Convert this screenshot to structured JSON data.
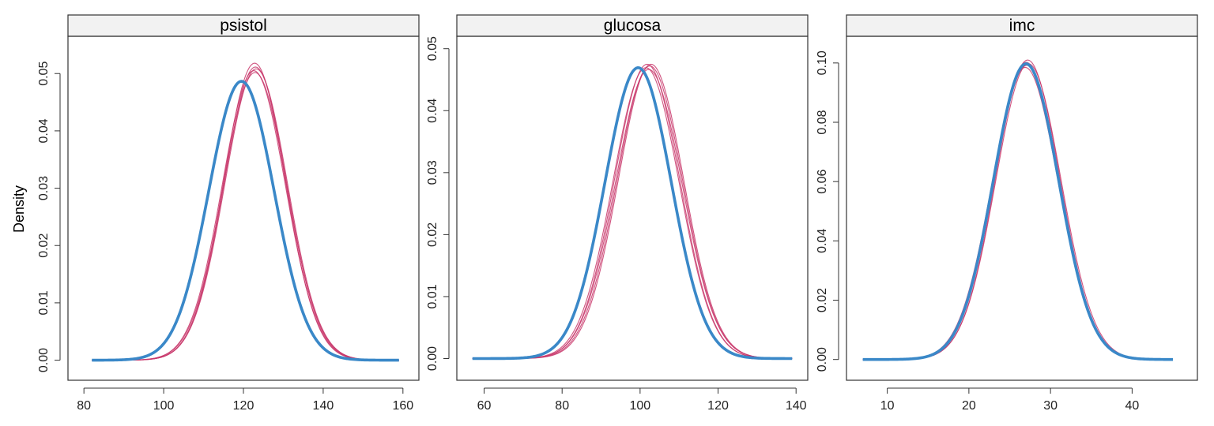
{
  "chart_data": {
    "type": "line",
    "ylabel": "Density",
    "colors": {
      "observed": "#3a88c8",
      "imputed": "#c8366a"
    },
    "panels": [
      {
        "title": "psistol",
        "xlim": [
          76,
          164
        ],
        "ylim": [
          -0.0035,
          0.0565
        ],
        "xticks": [
          80,
          100,
          120,
          140,
          160
        ],
        "yticks": [
          0.0,
          0.01,
          0.02,
          0.03,
          0.04,
          0.05
        ],
        "observed": {
          "mean": 119.5,
          "sd": 8.2,
          "range": [
            82,
            159
          ]
        },
        "imputed": [
          {
            "mean": 122.8,
            "sd": 7.7,
            "range": [
              82,
              159
            ]
          },
          {
            "mean": 123.0,
            "sd": 7.8,
            "range": [
              82,
              159
            ]
          },
          {
            "mean": 122.6,
            "sd": 7.9,
            "range": [
              82,
              159
            ]
          },
          {
            "mean": 123.2,
            "sd": 7.85,
            "range": [
              82,
              159
            ]
          },
          {
            "mean": 122.9,
            "sd": 7.95,
            "range": [
              82,
              159
            ]
          }
        ]
      },
      {
        "title": "glucosa",
        "xlim": [
          53,
          143
        ],
        "ylim": [
          -0.0035,
          0.052
        ],
        "xticks": [
          60,
          80,
          100,
          120,
          140
        ],
        "yticks": [
          0.0,
          0.01,
          0.02,
          0.03,
          0.04,
          0.05
        ],
        "observed": {
          "mean": 99.5,
          "sd": 8.5,
          "range": [
            57,
            139
          ]
        },
        "imputed": [
          {
            "mean": 101.8,
            "sd": 8.4,
            "range": [
              57,
              139
            ]
          },
          {
            "mean": 102.5,
            "sd": 8.45,
            "range": [
              57,
              139
            ]
          },
          {
            "mean": 101.5,
            "sd": 8.5,
            "range": [
              57,
              139
            ]
          },
          {
            "mean": 102.2,
            "sd": 8.55,
            "range": [
              57,
              139
            ]
          },
          {
            "mean": 102.8,
            "sd": 8.4,
            "range": [
              57,
              139
            ]
          }
        ]
      },
      {
        "title": "imc",
        "xlim": [
          5,
          48
        ],
        "ylim": [
          -0.007,
          0.109
        ],
        "xticks": [
          10,
          20,
          30,
          40
        ],
        "yticks": [
          0.0,
          0.02,
          0.04,
          0.06,
          0.08,
          0.1
        ],
        "observed": {
          "mean": 27.0,
          "sd": 4.0,
          "range": [
            7,
            45
          ]
        },
        "imputed": [
          {
            "mean": 27.2,
            "sd": 3.95,
            "range": [
              7,
              45
            ]
          },
          {
            "mean": 26.9,
            "sd": 4.05,
            "range": [
              7,
              45
            ]
          },
          {
            "mean": 27.3,
            "sd": 4.0,
            "range": [
              7,
              45
            ]
          },
          {
            "mean": 27.0,
            "sd": 3.98,
            "range": [
              7,
              45
            ]
          },
          {
            "mean": 27.1,
            "sd": 4.02,
            "range": [
              7,
              45
            ]
          }
        ]
      }
    ]
  }
}
